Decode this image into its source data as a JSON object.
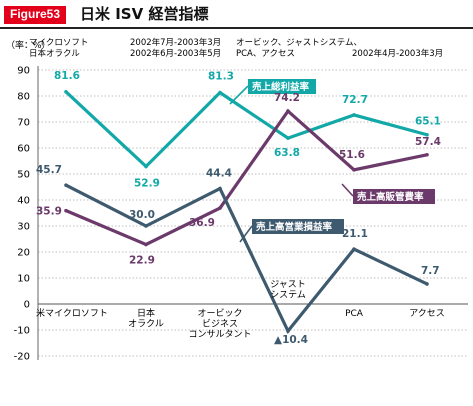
{
  "figure": {
    "badge": "Figure53",
    "title": "日米 ISV 経営指標"
  },
  "chart_data": {
    "type": "line",
    "unit_label": "（率：%）",
    "ylim": [
      -20,
      90
    ],
    "yticks": [
      90,
      80,
      70,
      60,
      50,
      40,
      30,
      20,
      10,
      0,
      -10,
      -20
    ],
    "categories": [
      [
        "米マイクロソフト"
      ],
      [
        "日本",
        "オラクル"
      ],
      [
        "オービック",
        "ビジネス",
        "コンサルタント"
      ],
      [
        "ジャスト",
        "システム"
      ],
      [
        "PCA"
      ],
      [
        "アクセス"
      ]
    ],
    "period_notes": [
      {
        "lines": [
          "マイクロソフト",
          "日本オラクル"
        ]
      },
      {
        "lines": [
          "2002年7月-2003年3月",
          "2002年6月-2003年5月"
        ]
      },
      {
        "lines": [
          "オービック、ジャストシステム、",
          "PCA、アクセス"
        ]
      },
      {
        "lines": [
          "2002年4月-2003年3月"
        ]
      }
    ],
    "series": [
      {
        "name": "売上総利益率",
        "color": "#13a8a8",
        "values": [
          81.6,
          52.9,
          81.3,
          63.8,
          72.7,
          65.1
        ],
        "labels": [
          "81.6",
          "52.9",
          "81.3",
          "63.8",
          "72.7",
          "65.1"
        ]
      },
      {
        "name": "売上高販管費率",
        "color": "#6b3a6b",
        "values": [
          35.9,
          22.9,
          36.9,
          74.2,
          51.6,
          57.4
        ],
        "labels": [
          "35.9",
          "22.9",
          "36.9",
          "74.2",
          "51.6",
          "57.4"
        ]
      },
      {
        "name": "売上高営業損益率",
        "color": "#3e5a6e",
        "values": [
          45.7,
          30.0,
          44.4,
          -10.4,
          21.1,
          7.7
        ],
        "labels": [
          "45.7",
          "30.0",
          "44.4",
          "▲10.4",
          "21.1",
          "7.7"
        ]
      }
    ]
  }
}
